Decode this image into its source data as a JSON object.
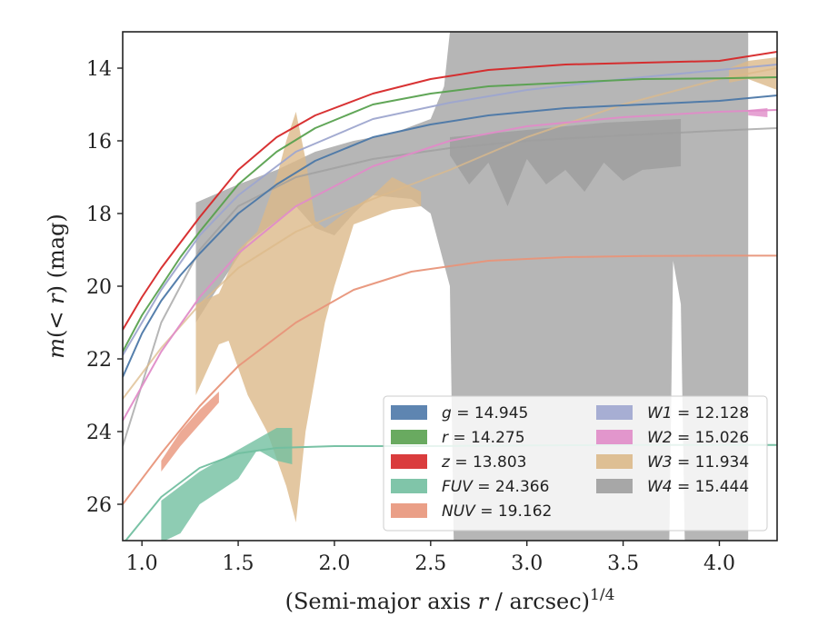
{
  "chart_data": {
    "type": "line",
    "xlabel_main": "(Semi-major axis ",
    "xlabel_var": "r",
    "xlabel_tail": " / arcsec)",
    "xlabel_sup": "1/4",
    "ylabel_pre": "m(< ",
    "ylabel_var": "r",
    "ylabel_post": ") (mag)",
    "xlim": [
      0.9,
      4.3
    ],
    "ylim": [
      27.0,
      13.0
    ],
    "y_inverted": true,
    "grid": false,
    "legend_position": "lower-right",
    "xticks": [
      {
        "v": 1.0,
        "label": "1.0"
      },
      {
        "v": 1.5,
        "label": "1.5"
      },
      {
        "v": 2.0,
        "label": "2.0"
      },
      {
        "v": 2.5,
        "label": "2.5"
      },
      {
        "v": 3.0,
        "label": "3.0"
      },
      {
        "v": 3.5,
        "label": "3.5"
      },
      {
        "v": 4.0,
        "label": "4.0"
      }
    ],
    "yticks": [
      {
        "v": 14,
        "label": "14"
      },
      {
        "v": 16,
        "label": "16"
      },
      {
        "v": 18,
        "label": "18"
      },
      {
        "v": 20,
        "label": "20"
      },
      {
        "v": 22,
        "label": "22"
      },
      {
        "v": 24,
        "label": "24"
      },
      {
        "v": 26,
        "label": "26"
      }
    ],
    "series": [
      {
        "key": "W4",
        "name": "W4",
        "value_label": "W4 = 15.444",
        "color": "#9e9e9e",
        "band_upper": [
          [
            1.28,
            17.7
          ],
          [
            1.5,
            17.2
          ],
          [
            1.7,
            16.8
          ],
          [
            1.9,
            16.3
          ],
          [
            2.1,
            16.0
          ],
          [
            2.3,
            15.8
          ],
          [
            2.5,
            15.4
          ],
          [
            2.57,
            14.5
          ],
          [
            2.6,
            13.0
          ],
          [
            4.15,
            13.0
          ]
        ],
        "band_lower": [
          [
            4.15,
            27.0
          ],
          [
            3.82,
            27.0
          ],
          [
            3.8,
            20.5
          ],
          [
            3.76,
            19.3
          ],
          [
            3.74,
            27.0
          ],
          [
            2.62,
            27.0
          ],
          [
            2.6,
            20.0
          ],
          [
            2.55,
            19.0
          ],
          [
            2.5,
            18.0
          ],
          [
            2.4,
            17.6
          ],
          [
            2.2,
            17.5
          ],
          [
            2.1,
            18.0
          ],
          [
            2.0,
            18.6
          ],
          [
            1.9,
            18.4
          ],
          [
            1.8,
            17.8
          ],
          [
            1.7,
            18.2
          ],
          [
            1.55,
            18.8
          ],
          [
            1.4,
            20.0
          ],
          [
            1.28,
            21.0
          ]
        ],
        "band_opacity": 0.75,
        "extra_band": {
          "upper": [
            [
              2.6,
              15.9
            ],
            [
              2.8,
              15.8
            ],
            [
              3.0,
              15.7
            ],
            [
              3.2,
              15.6
            ],
            [
              3.4,
              15.5
            ],
            [
              3.6,
              15.45
            ],
            [
              3.8,
              15.4
            ]
          ],
          "lower": [
            [
              3.8,
              16.7
            ],
            [
              3.6,
              16.8
            ],
            [
              3.5,
              17.1
            ],
            [
              3.4,
              16.6
            ],
            [
              3.3,
              17.4
            ],
            [
              3.2,
              16.8
            ],
            [
              3.1,
              17.2
            ],
            [
              3.0,
              16.5
            ],
            [
              2.9,
              17.8
            ],
            [
              2.8,
              16.6
            ],
            [
              2.7,
              17.2
            ],
            [
              2.6,
              16.4
            ]
          ]
        },
        "curve": [
          [
            0.9,
            24.4
          ],
          [
            1.1,
            21.0
          ],
          [
            1.3,
            19.0
          ],
          [
            1.5,
            17.8
          ],
          [
            1.8,
            17.0
          ],
          [
            2.2,
            16.5
          ],
          [
            2.6,
            16.2
          ],
          [
            3.0,
            16.0
          ],
          [
            3.5,
            15.85
          ],
          [
            4.0,
            15.72
          ],
          [
            4.3,
            15.65
          ]
        ]
      },
      {
        "key": "W3",
        "name": "W3",
        "value_label": "W3 = 11.934",
        "color": "#dcb98a",
        "band_upper": [
          [
            1.28,
            20.5
          ],
          [
            1.4,
            20.2
          ],
          [
            1.5,
            19.0
          ],
          [
            1.6,
            18.5
          ],
          [
            1.7,
            17.0
          ],
          [
            1.75,
            16.0
          ],
          [
            1.8,
            15.2
          ],
          [
            1.85,
            16.5
          ],
          [
            1.9,
            18.2
          ],
          [
            1.95,
            18.4
          ],
          [
            2.05,
            18.0
          ],
          [
            2.2,
            17.5
          ],
          [
            2.3,
            17.0
          ],
          [
            2.45,
            17.4
          ]
        ],
        "band_lower": [
          [
            2.45,
            17.8
          ],
          [
            2.3,
            17.9
          ],
          [
            2.1,
            18.3
          ],
          [
            2.0,
            20.0
          ],
          [
            1.95,
            21.0
          ],
          [
            1.9,
            22.5
          ],
          [
            1.85,
            24.0
          ],
          [
            1.8,
            26.5
          ],
          [
            1.75,
            25.5
          ],
          [
            1.65,
            24.0
          ],
          [
            1.55,
            23.0
          ],
          [
            1.45,
            21.5
          ],
          [
            1.4,
            21.6
          ],
          [
            1.28,
            23.0
          ]
        ],
        "extra_band": {
          "upper": [
            [
              4.05,
              14.0
            ],
            [
              4.15,
              13.8
            ],
            [
              4.3,
              13.7
            ]
          ],
          "lower": [
            [
              4.3,
              14.6
            ],
            [
              4.15,
              14.3
            ],
            [
              4.05,
              14.4
            ]
          ]
        },
        "curve": [
          [
            0.9,
            23.1
          ],
          [
            1.1,
            21.7
          ],
          [
            1.3,
            20.5
          ],
          [
            1.5,
            19.5
          ],
          [
            1.8,
            18.5
          ],
          [
            2.2,
            17.6
          ],
          [
            2.6,
            16.8
          ],
          [
            3.0,
            15.9
          ],
          [
            3.5,
            15.0
          ],
          [
            4.0,
            14.3
          ],
          [
            4.3,
            14.0
          ]
        ]
      },
      {
        "key": "W2",
        "name": "W2",
        "value_label": "W2 = 15.026",
        "color": "#e08cc8",
        "band_upper": [
          [
            4.15,
            15.15
          ],
          [
            4.25,
            15.1
          ]
        ],
        "band_lower": [
          [
            4.25,
            15.35
          ],
          [
            4.15,
            15.3
          ]
        ],
        "curve": [
          [
            0.9,
            23.7
          ],
          [
            1.1,
            21.8
          ],
          [
            1.3,
            20.3
          ],
          [
            1.5,
            19.1
          ],
          [
            1.8,
            17.8
          ],
          [
            2.2,
            16.7
          ],
          [
            2.6,
            16.0
          ],
          [
            3.0,
            15.6
          ],
          [
            3.5,
            15.35
          ],
          [
            4.0,
            15.2
          ],
          [
            4.3,
            15.15
          ]
        ]
      },
      {
        "key": "W1",
        "name": "W1",
        "value_label": "W1 = 12.128",
        "color": "#9ea6cf",
        "curve": [
          [
            0.9,
            21.9
          ],
          [
            1.1,
            20.1
          ],
          [
            1.3,
            18.6
          ],
          [
            1.5,
            17.5
          ],
          [
            1.8,
            16.3
          ],
          [
            2.2,
            15.4
          ],
          [
            2.6,
            14.95
          ],
          [
            3.0,
            14.6
          ],
          [
            3.5,
            14.3
          ],
          [
            4.0,
            14.05
          ],
          [
            4.3,
            13.9
          ]
        ]
      },
      {
        "key": "g",
        "name": "g",
        "value_label": "g = 14.945",
        "color": "#4c78a8",
        "curve": [
          [
            0.9,
            22.5
          ],
          [
            1.0,
            21.3
          ],
          [
            1.1,
            20.4
          ],
          [
            1.2,
            19.7
          ],
          [
            1.3,
            19.1
          ],
          [
            1.5,
            18.0
          ],
          [
            1.7,
            17.2
          ],
          [
            1.9,
            16.55
          ],
          [
            2.2,
            15.9
          ],
          [
            2.5,
            15.55
          ],
          [
            2.8,
            15.3
          ],
          [
            3.2,
            15.1
          ],
          [
            3.6,
            15.0
          ],
          [
            4.0,
            14.9
          ],
          [
            4.3,
            14.75
          ]
        ]
      },
      {
        "key": "r",
        "name": "r",
        "value_label": "r = 14.275",
        "color": "#59a14f",
        "curve": [
          [
            0.9,
            21.8
          ],
          [
            1.0,
            20.8
          ],
          [
            1.1,
            20.0
          ],
          [
            1.2,
            19.2
          ],
          [
            1.3,
            18.5
          ],
          [
            1.5,
            17.2
          ],
          [
            1.7,
            16.3
          ],
          [
            1.9,
            15.65
          ],
          [
            2.2,
            15.0
          ],
          [
            2.5,
            14.7
          ],
          [
            2.8,
            14.5
          ],
          [
            3.2,
            14.4
          ],
          [
            3.6,
            14.3
          ],
          [
            4.0,
            14.28
          ],
          [
            4.3,
            14.25
          ]
        ]
      },
      {
        "key": "z",
        "name": "z",
        "value_label": "z = 13.803",
        "color": "#d62728",
        "curve": [
          [
            0.9,
            21.2
          ],
          [
            1.0,
            20.3
          ],
          [
            1.1,
            19.5
          ],
          [
            1.2,
            18.8
          ],
          [
            1.3,
            18.1
          ],
          [
            1.5,
            16.8
          ],
          [
            1.7,
            15.9
          ],
          [
            1.9,
            15.3
          ],
          [
            2.2,
            14.7
          ],
          [
            2.5,
            14.3
          ],
          [
            2.8,
            14.05
          ],
          [
            3.2,
            13.9
          ],
          [
            3.6,
            13.85
          ],
          [
            4.0,
            13.8
          ],
          [
            4.3,
            13.55
          ]
        ]
      },
      {
        "key": "FUV",
        "name": "FUV",
        "value_label": "FUV = 24.366",
        "color": "#72bfa0",
        "band_upper": [
          [
            1.1,
            25.9
          ],
          [
            1.3,
            25.1
          ],
          [
            1.5,
            24.5
          ],
          [
            1.7,
            23.9
          ],
          [
            1.78,
            23.9
          ]
        ],
        "band_lower": [
          [
            1.78,
            24.9
          ],
          [
            1.7,
            24.8
          ],
          [
            1.6,
            24.5
          ],
          [
            1.5,
            25.3
          ],
          [
            1.3,
            26.0
          ],
          [
            1.2,
            26.8
          ],
          [
            1.12,
            27.0
          ],
          [
            1.1,
            27.0
          ]
        ],
        "curve": [
          [
            0.9,
            27.1
          ],
          [
            1.1,
            25.8
          ],
          [
            1.3,
            25.0
          ],
          [
            1.5,
            24.6
          ],
          [
            1.7,
            24.45
          ],
          [
            2.0,
            24.4
          ],
          [
            2.5,
            24.4
          ],
          [
            3.0,
            24.38
          ],
          [
            3.5,
            24.37
          ],
          [
            4.0,
            24.37
          ],
          [
            4.3,
            24.37
          ]
        ]
      },
      {
        "key": "NUV",
        "name": "NUV",
        "value_label": "NUV = 19.162",
        "color": "#e8957a",
        "band_upper": [
          [
            1.1,
            24.8
          ],
          [
            1.2,
            24.0
          ],
          [
            1.3,
            23.4
          ],
          [
            1.4,
            22.9
          ]
        ],
        "band_lower": [
          [
            1.4,
            23.2
          ],
          [
            1.3,
            23.8
          ],
          [
            1.2,
            24.4
          ],
          [
            1.1,
            25.1
          ]
        ],
        "curve": [
          [
            0.9,
            26.0
          ],
          [
            1.1,
            24.6
          ],
          [
            1.3,
            23.3
          ],
          [
            1.5,
            22.2
          ],
          [
            1.8,
            21.0
          ],
          [
            2.1,
            20.1
          ],
          [
            2.4,
            19.6
          ],
          [
            2.8,
            19.3
          ],
          [
            3.2,
            19.2
          ],
          [
            3.6,
            19.17
          ],
          [
            4.0,
            19.16
          ],
          [
            4.3,
            19.16
          ]
        ]
      }
    ],
    "legend": {
      "col1": [
        "g",
        "r",
        "z",
        "FUV",
        "NUV"
      ],
      "col2": [
        "W1",
        "W2",
        "W3",
        "W4"
      ]
    }
  }
}
